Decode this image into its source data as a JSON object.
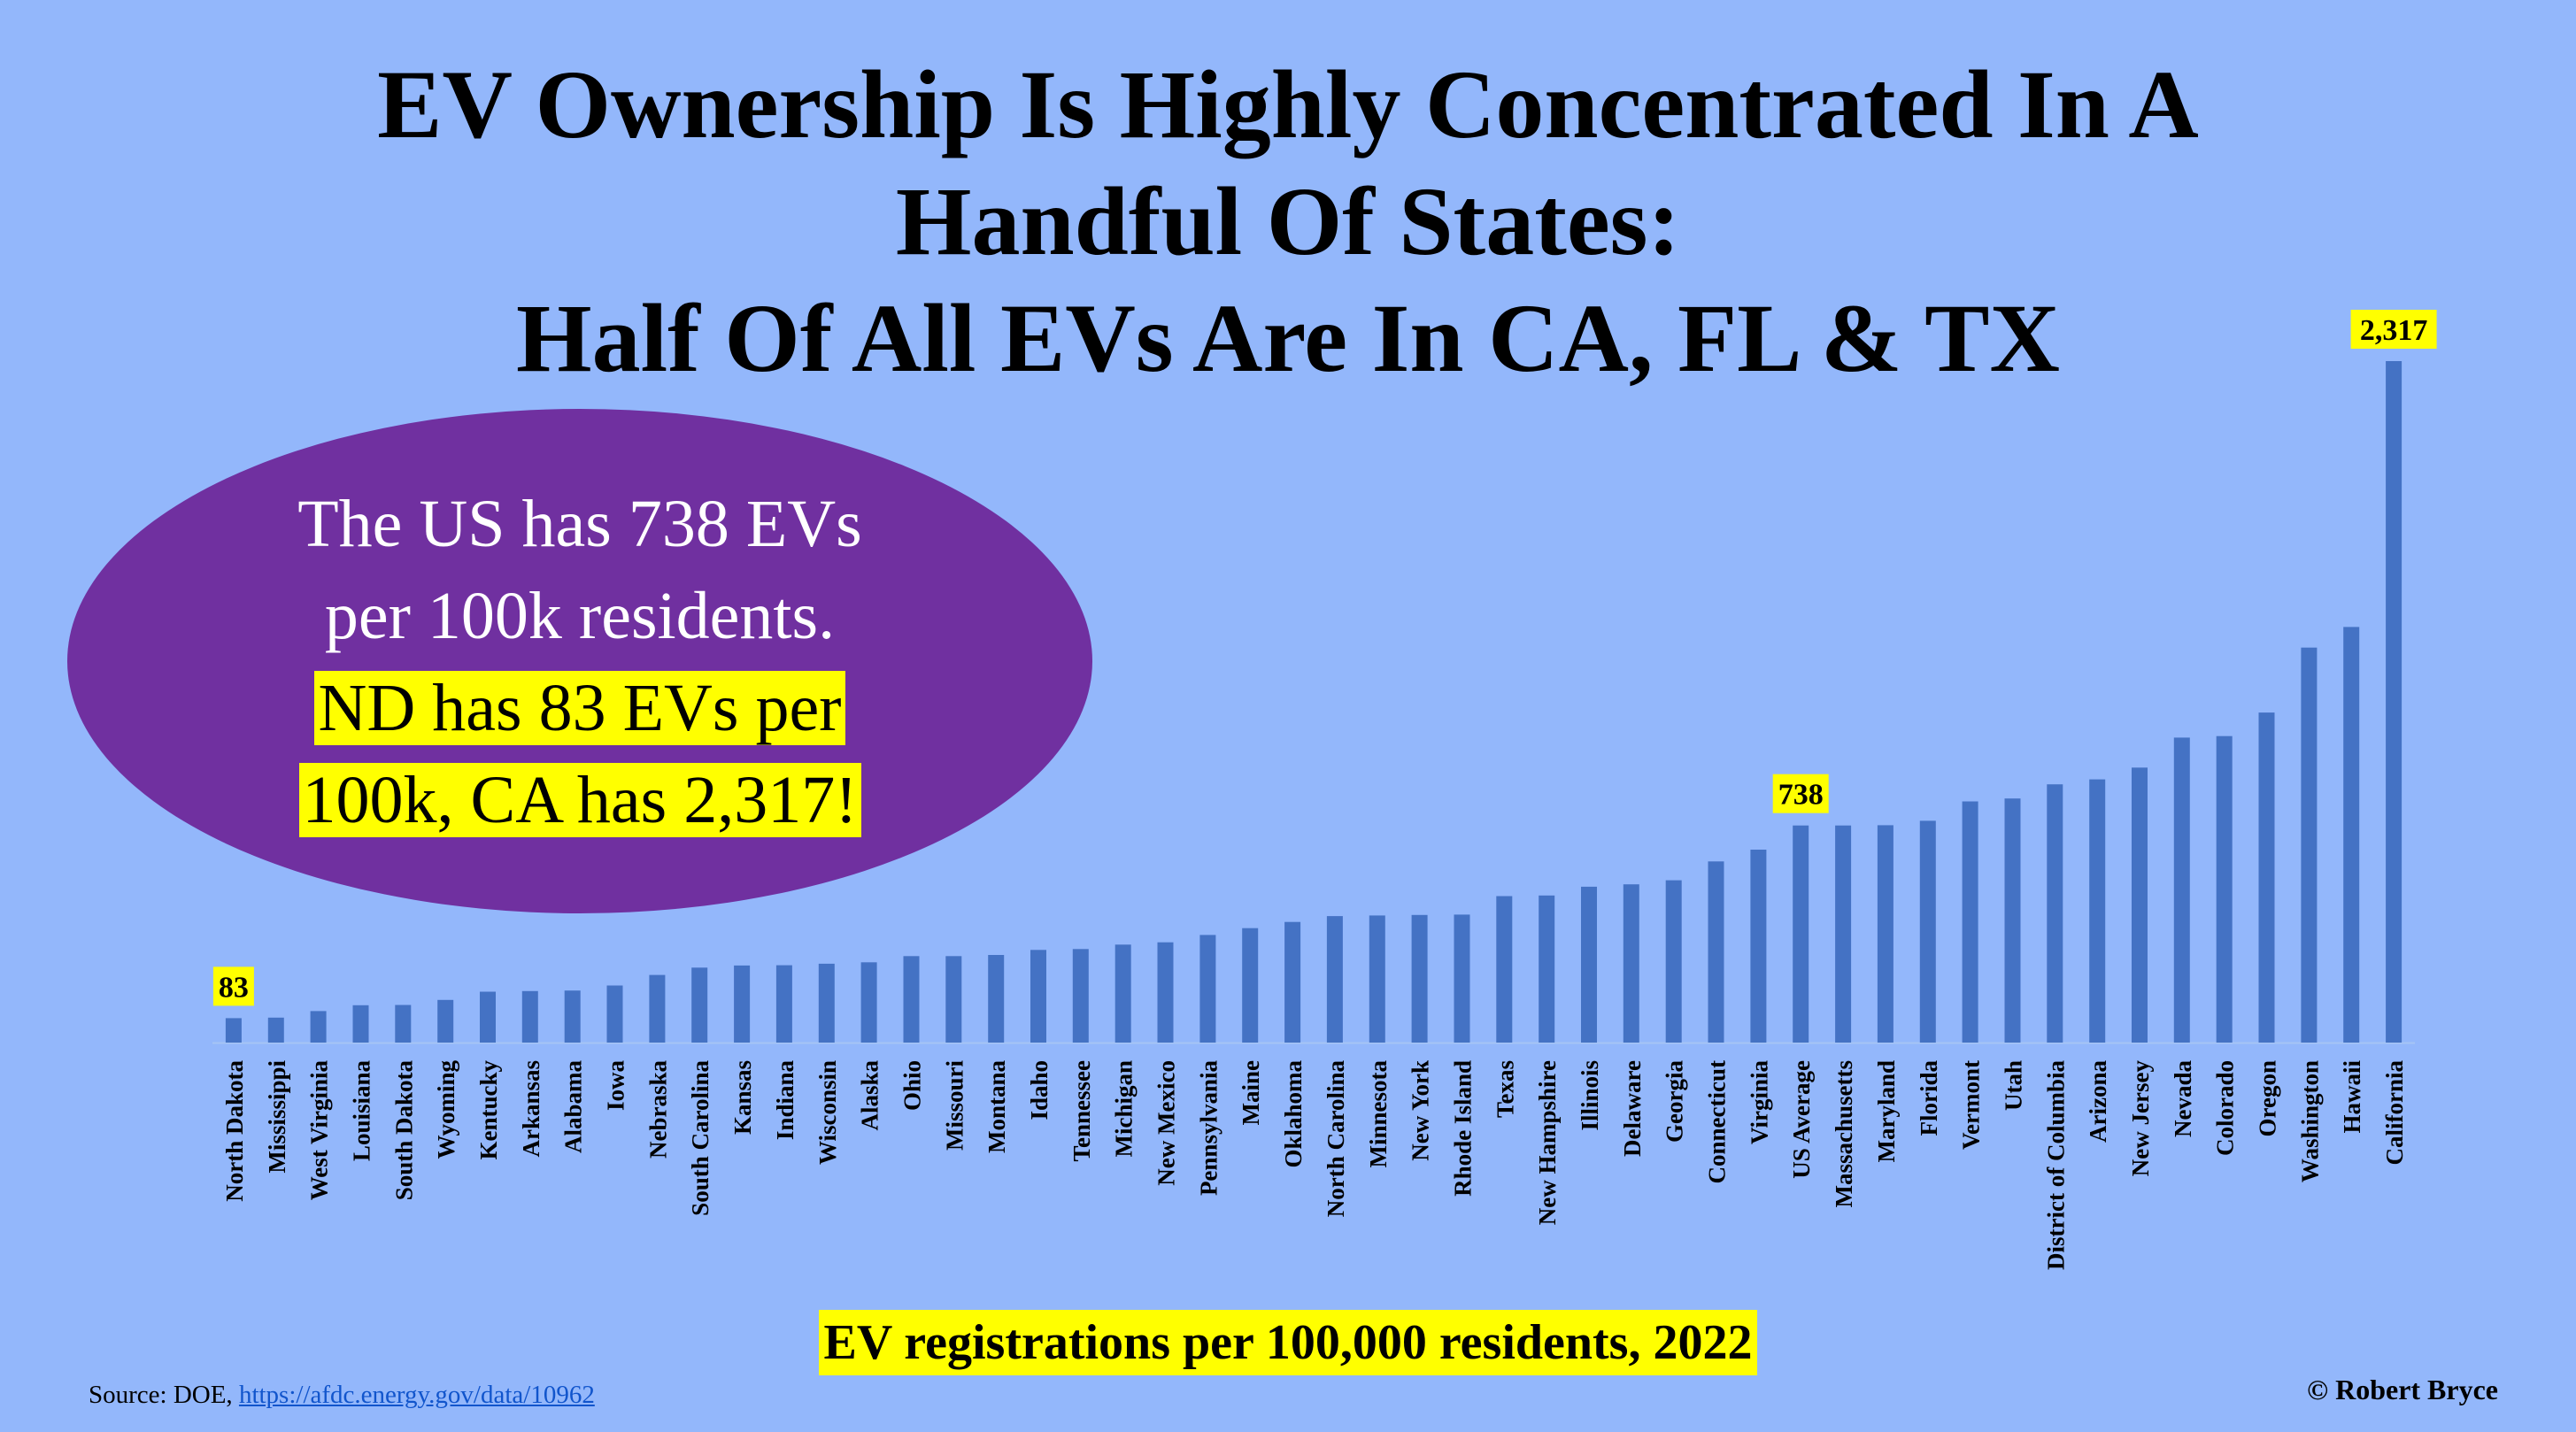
{
  "title_lines": [
    "EV Ownership Is Highly Concentrated In A",
    "Handful Of States:",
    "Half Of All EVs Are In CA, FL & TX"
  ],
  "callout": {
    "line1": "The US has 738 EVs",
    "line2": "per 100k residents.",
    "line3": "ND has 83 EVs per",
    "line4": "100k, CA has 2,317!"
  },
  "source": {
    "label": "Source: DOE,",
    "link": "https://afdc.energy.gov/data/10962"
  },
  "copyright": "© Robert Bryce",
  "colors": {
    "background": "#93b7fb",
    "bar": "#4472c4",
    "callout": "#7030a0",
    "highlight": "#ffff00"
  },
  "chart_data": {
    "type": "bar",
    "title": "",
    "xlabel": "EV registrations per 100,000 residents, 2022",
    "ylabel": "",
    "ylim": [
      0,
      2317
    ],
    "grid": false,
    "categories": [
      "North Dakota",
      "Mississippi",
      "West Virginia",
      "Louisiana",
      "South Dakota",
      "Wyoming",
      "Kentucky",
      "Arkansas",
      "Alabama",
      "Iowa",
      "Nebraska",
      "South Carolina",
      "Kansas",
      "Indiana",
      "Wisconsin",
      "Alaska",
      "Ohio",
      "Missouri",
      "Montana",
      "Idaho",
      "Tennessee",
      "Michigan",
      "New Mexico",
      "Pennsylvania",
      "Maine",
      "Oklahoma",
      "North Carolina",
      "Minnesota",
      "New York",
      "Rhode Island",
      "Texas",
      "New Hampshire",
      "Illinois",
      "Delaware",
      "Georgia",
      "Connecticut",
      "Virginia",
      "US Average",
      "Massachusetts",
      "Maryland",
      "Florida",
      "Vermont",
      "Utah",
      "District of Columbia",
      "Arizona",
      "New Jersey",
      "Nevada",
      "Colorado",
      "Oregon",
      "Washington",
      "Hawaii",
      "California"
    ],
    "values": [
      83,
      85,
      107,
      127,
      128,
      145,
      173,
      175,
      177,
      194,
      230,
      255,
      262,
      263,
      268,
      273,
      294,
      294,
      298,
      315,
      318,
      333,
      341,
      366,
      389,
      410,
      430,
      432,
      434,
      435,
      498,
      500,
      530,
      538,
      552,
      616,
      656,
      738,
      738,
      739,
      754,
      820,
      830,
      878,
      895,
      935,
      1037,
      1042,
      1122,
      1343,
      1413,
      2317
    ],
    "data_labels": [
      {
        "category": "North Dakota",
        "text": "83"
      },
      {
        "category": "US Average",
        "text": "738"
      },
      {
        "category": "California",
        "text": "2,317"
      }
    ]
  }
}
